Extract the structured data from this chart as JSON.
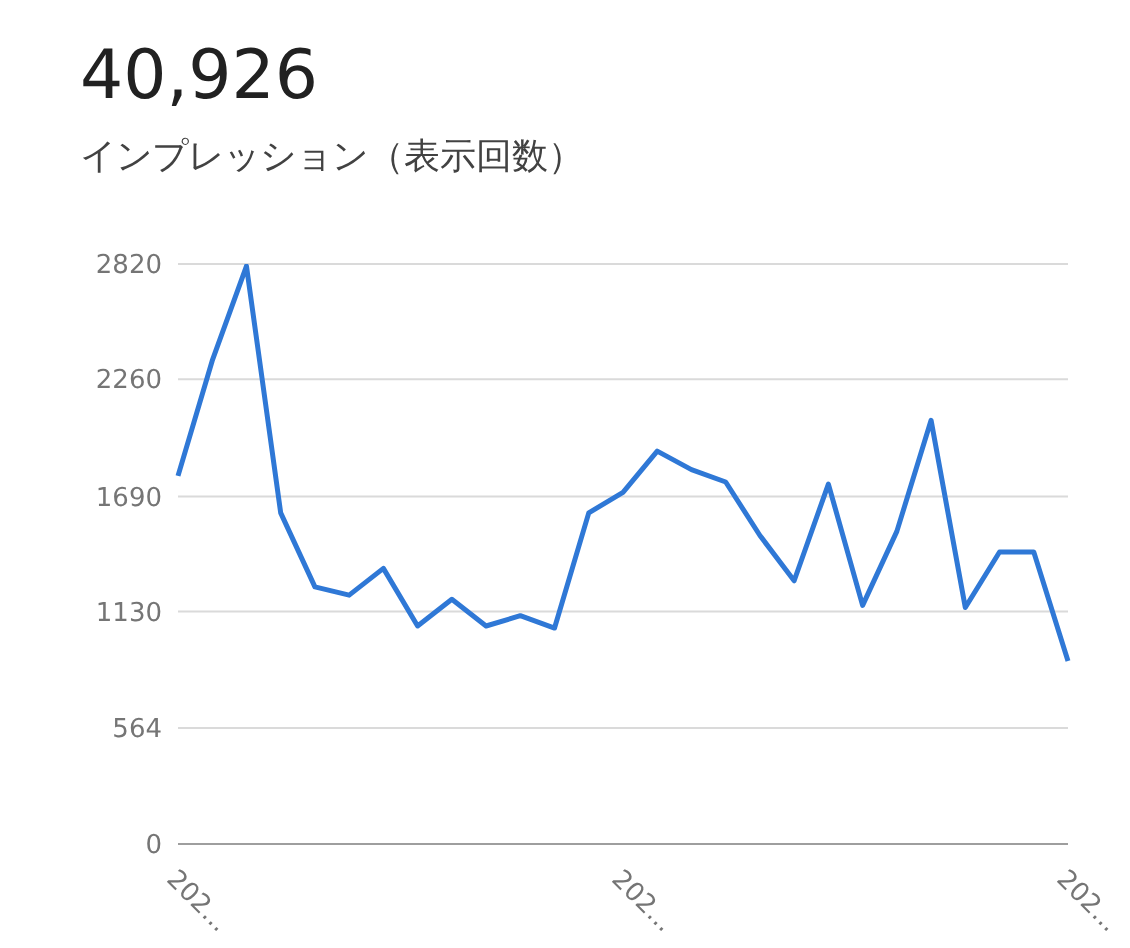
{
  "chart_data": {
    "type": "line",
    "title": "40,926",
    "subtitle": "インプレッション（表示回数）",
    "categories": [
      "202...",
      null,
      null,
      null,
      null,
      null,
      null,
      null,
      null,
      null,
      null,
      null,
      null,
      "202...",
      null,
      null,
      null,
      null,
      null,
      null,
      null,
      null,
      null,
      null,
      null,
      null,
      "202..."
    ],
    "series": [
      {
        "color": "#2f78d6",
        "values": [
          1790,
          2350,
          2810,
          1610,
          1250,
          1210,
          1340,
          1060,
          1190,
          1060,
          1110,
          1050,
          1610,
          1710,
          1910,
          1820,
          1760,
          1500,
          1280,
          1750,
          1160,
          1520,
          2060,
          1150,
          1420,
          1420,
          890
        ]
      }
    ],
    "ylim": [
      0,
      2820
    ],
    "yticks": [
      0,
      564,
      1130,
      1690,
      2260,
      2820
    ],
    "grid": "y",
    "marker": "none",
    "line_style": "solid"
  }
}
